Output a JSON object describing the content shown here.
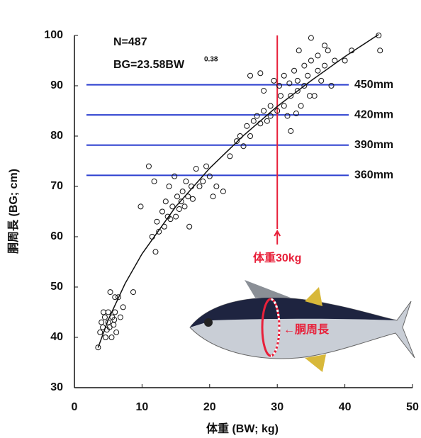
{
  "chart_data": {
    "type": "scatter",
    "annotations": [
      "N=487",
      "BG=23.58BW",
      "0.38"
    ],
    "xlabel": "体重 (BW; kg)",
    "ylabel": "胴周長 (BG; cm)",
    "xlim": [
      0,
      50
    ],
    "xticks": [
      0,
      10,
      20,
      30,
      40,
      50
    ],
    "ylim": [
      30,
      100
    ],
    "yticks": [
      30,
      40,
      50,
      60,
      70,
      80,
      90,
      100
    ],
    "series": [
      {
        "type": "scatter",
        "color": "#111111",
        "x": [
          3.5,
          3.8,
          4,
          4.2,
          4.5,
          4.6,
          4.8,
          5,
          5,
          5.2,
          5.3,
          5.5,
          5.6,
          5.8,
          6,
          6.2,
          6.5,
          6.8,
          7.2,
          6,
          4.3,
          5.9,
          8.7,
          9.8,
          11,
          11.5,
          12,
          12.2,
          12.5,
          13,
          13.3,
          13.5,
          13.8,
          14,
          14.2,
          14.5,
          14.8,
          15,
          15.2,
          15.5,
          15.8,
          16,
          16.3,
          16.5,
          16.8,
          17,
          17.3,
          17.5,
          18,
          18.5,
          19,
          19.5,
          20,
          20.5,
          21,
          22,
          11.8,
          23,
          24,
          24.5,
          25,
          25.5,
          26,
          26.5,
          27,
          27.5,
          28,
          28.5,
          29,
          26,
          27.5,
          28,
          29,
          29.5,
          30,
          30.3,
          30.5,
          31,
          31,
          31.5,
          31.8,
          32,
          32,
          32.5,
          33,
          33,
          33.5,
          34,
          34,
          34.5,
          35,
          35,
          35.5,
          36,
          36,
          36.5,
          37,
          37.5,
          38,
          38.5,
          37,
          40,
          41,
          45,
          45.2,
          33.2,
          32.8,
          34.8
        ],
        "values": [
          38,
          41,
          43,
          42,
          44,
          40,
          41.5,
          43,
          45,
          42,
          49,
          40,
          44,
          42.5,
          45,
          41,
          48,
          44,
          46,
          48,
          45,
          43.5,
          49,
          66,
          74,
          60,
          57,
          63,
          61,
          65,
          62,
          67,
          64,
          70,
          63.5,
          66,
          72,
          64,
          68,
          65.5,
          67,
          69,
          66,
          71,
          68,
          62,
          70,
          67.5,
          73.5,
          70,
          71,
          74,
          72,
          68,
          70,
          69,
          71,
          76,
          79,
          80,
          78,
          82,
          80,
          83,
          84,
          82.5,
          85,
          83,
          86,
          92,
          92.5,
          89,
          84,
          91,
          85,
          90,
          88,
          92,
          86,
          84,
          90.5,
          81,
          88,
          93,
          89,
          91,
          86,
          94,
          90,
          92,
          99.5,
          95,
          88,
          93,
          96,
          91,
          94,
          97,
          90,
          95,
          98,
          95,
          97,
          100,
          97,
          97,
          84.5,
          88
        ]
      },
      {
        "type": "line",
        "color": "#111111",
        "x": [
          3.5,
          5,
          7.5,
          10,
          15,
          20,
          25,
          30,
          35,
          40,
          45
        ],
        "values": [
          37.96,
          43.5,
          50.7,
          56.6,
          66.0,
          73.6,
          80.1,
          85.9,
          91.0,
          95.8,
          100.2
        ]
      }
    ],
    "reference_lines": [
      {
        "value": 90.2,
        "label": "450mm"
      },
      {
        "value": 84.2,
        "label": "420mm"
      },
      {
        "value": 78.2,
        "label": "390mm"
      },
      {
        "value": 72.2,
        "label": "360mm"
      }
    ],
    "reference_color": "#2b3fcf",
    "vertical_line": {
      "value": 30,
      "label": "体重30kg",
      "color": "#e8203a"
    },
    "fish_label": "←胴周長"
  }
}
